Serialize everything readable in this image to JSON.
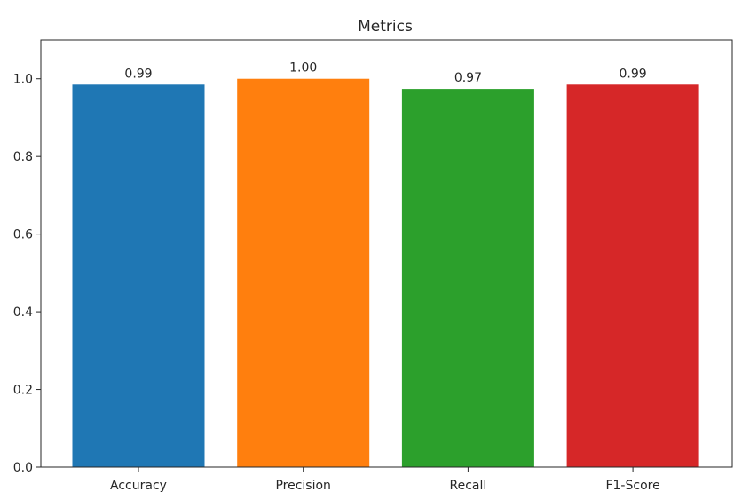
{
  "chart_data": {
    "type": "bar",
    "title": "Metrics",
    "xlabel": "",
    "ylabel": "",
    "categories": [
      "Accuracy",
      "Precision",
      "Recall",
      "F1-Score"
    ],
    "values": [
      0.985,
      1.0,
      0.974,
      0.985
    ],
    "data_labels": [
      "0.99",
      "1.00",
      "0.97",
      "0.99"
    ],
    "colors": [
      "#1f77b4",
      "#ff7f0e",
      "#2ca02c",
      "#d62728"
    ],
    "ylim": [
      0,
      1.1
    ],
    "yticks": [
      0.0,
      0.2,
      0.4,
      0.6,
      0.8,
      1.0
    ],
    "ytick_labels": [
      "0.0",
      "0.2",
      "0.4",
      "0.6",
      "0.8",
      "1.0"
    ],
    "grid": false,
    "legend": "none"
  }
}
